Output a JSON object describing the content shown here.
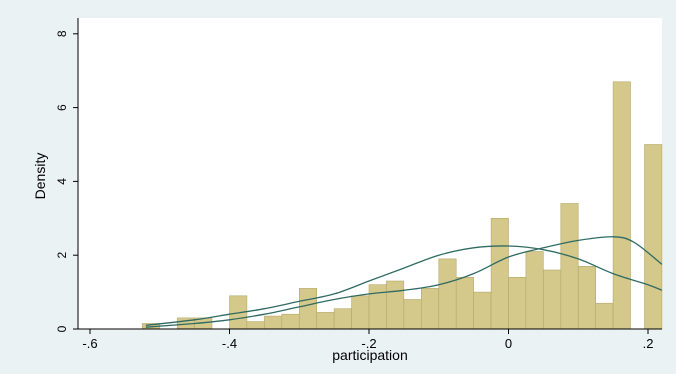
{
  "chart_data": {
    "type": "bar",
    "title": "",
    "xlabel": "participation",
    "ylabel": "Density",
    "xlim": [
      -0.6,
      0.22
    ],
    "ylim": [
      0,
      8
    ],
    "x_ticks": [
      -0.6,
      -0.4,
      -0.2,
      0,
      0.2
    ],
    "x_tick_labels": [
      "-.6",
      "-.4",
      "-.2",
      "0",
      ".2"
    ],
    "y_ticks": [
      0,
      2,
      4,
      6,
      8
    ],
    "y_tick_labels": [
      "0",
      "2",
      "4",
      "6",
      "8"
    ],
    "grid": false,
    "legend": "none",
    "bin_width": 0.025,
    "bins": [
      {
        "x0": -0.525,
        "value": 0.15
      },
      {
        "x0": -0.475,
        "value": 0.3
      },
      {
        "x0": -0.45,
        "value": 0.3
      },
      {
        "x0": -0.4,
        "value": 0.9
      },
      {
        "x0": -0.375,
        "value": 0.2
      },
      {
        "x0": -0.35,
        "value": 0.35
      },
      {
        "x0": -0.325,
        "value": 0.4
      },
      {
        "x0": -0.3,
        "value": 1.1
      },
      {
        "x0": -0.275,
        "value": 0.45
      },
      {
        "x0": -0.25,
        "value": 0.55
      },
      {
        "x0": -0.225,
        "value": 0.9
      },
      {
        "x0": -0.2,
        "value": 1.2
      },
      {
        "x0": -0.175,
        "value": 1.3
      },
      {
        "x0": -0.15,
        "value": 0.8
      },
      {
        "x0": -0.125,
        "value": 1.1
      },
      {
        "x0": -0.1,
        "value": 1.9
      },
      {
        "x0": -0.075,
        "value": 1.4
      },
      {
        "x0": -0.05,
        "value": 1.0
      },
      {
        "x0": -0.025,
        "value": 3.0
      },
      {
        "x0": 0.0,
        "value": 1.4
      },
      {
        "x0": 0.025,
        "value": 2.1
      },
      {
        "x0": 0.05,
        "value": 1.6
      },
      {
        "x0": 0.075,
        "value": 3.4
      },
      {
        "x0": 0.1,
        "value": 1.7
      },
      {
        "x0": 0.125,
        "value": 0.7
      },
      {
        "x0": 0.15,
        "value": 6.7
      },
      {
        "x0": 0.195,
        "value": 5.0
      }
    ],
    "series": [
      {
        "type": "line",
        "x": [
          -0.52,
          -0.45,
          -0.4,
          -0.35,
          -0.3,
          -0.25,
          -0.2,
          -0.15,
          -0.1,
          -0.05,
          0.0,
          0.05,
          0.1,
          0.15,
          0.2,
          0.22
        ],
        "values": [
          0.1,
          0.25,
          0.4,
          0.55,
          0.75,
          0.95,
          1.3,
          1.65,
          2.0,
          2.2,
          2.25,
          2.15,
          1.9,
          1.5,
          1.2,
          1.05
        ]
      },
      {
        "type": "line",
        "x": [
          -0.52,
          -0.45,
          -0.4,
          -0.35,
          -0.3,
          -0.25,
          -0.2,
          -0.15,
          -0.1,
          -0.05,
          0.0,
          0.05,
          0.1,
          0.15,
          0.18,
          0.22
        ],
        "values": [
          0.05,
          0.15,
          0.25,
          0.4,
          0.6,
          0.8,
          0.95,
          1.05,
          1.2,
          1.5,
          1.95,
          2.2,
          2.4,
          2.5,
          2.35,
          1.75
        ]
      }
    ],
    "colors": {
      "bar_fill": "#d4c88a",
      "bar_stroke": "#b3a86a",
      "line": "#2f6b63",
      "plot_bg": "#ffffff",
      "outer_bg": "#eaf2f3"
    }
  }
}
